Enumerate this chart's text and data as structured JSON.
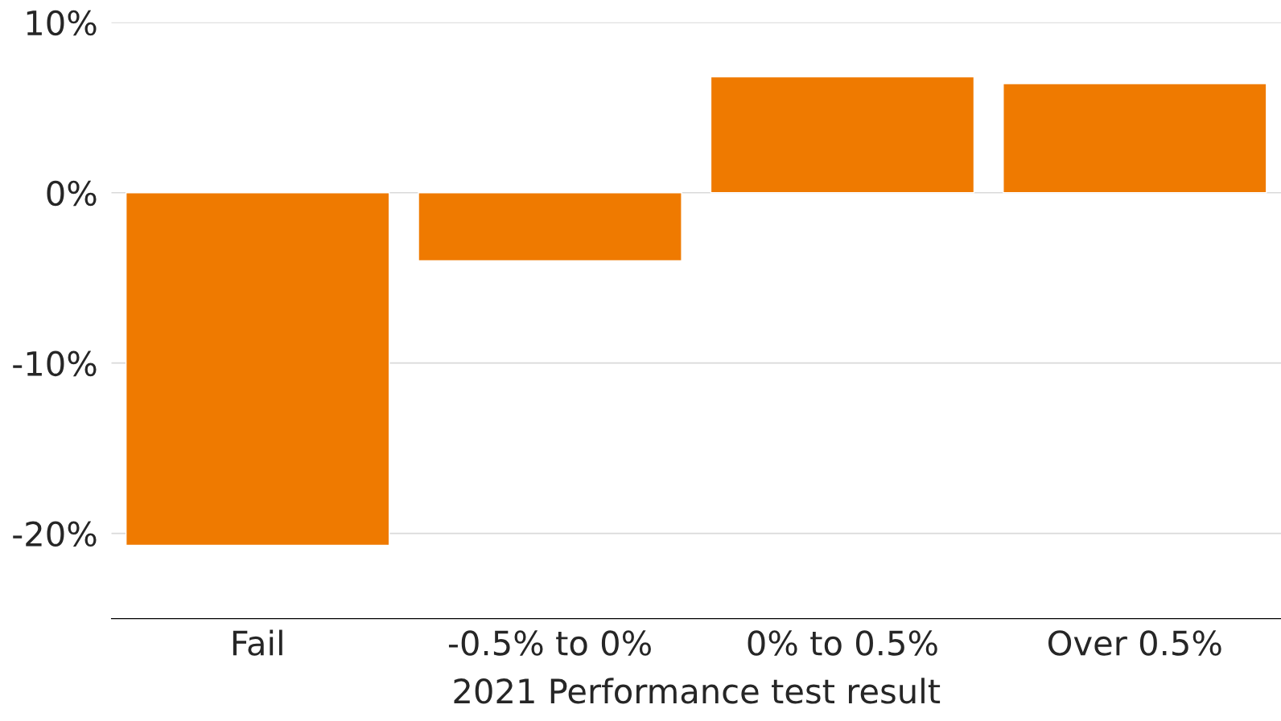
{
  "chart_data": {
    "type": "bar",
    "xlabel": "2021 Performance test result",
    "categories": [
      "Fail",
      "-0.5% to 0%",
      "0% to 0.5%",
      "Over 0.5%"
    ],
    "values": [
      -20.7,
      -4.0,
      6.8,
      6.4
    ],
    "color": "#ef7a00",
    "ylim": [
      -25,
      10
    ],
    "yticks": [
      {
        "value": -20,
        "label": "-20%"
      },
      {
        "value": -10,
        "label": "-10%"
      },
      {
        "value": 0,
        "label": "0%"
      },
      {
        "value": 10,
        "label": "10%"
      }
    ],
    "grid": "y",
    "legend": false
  }
}
